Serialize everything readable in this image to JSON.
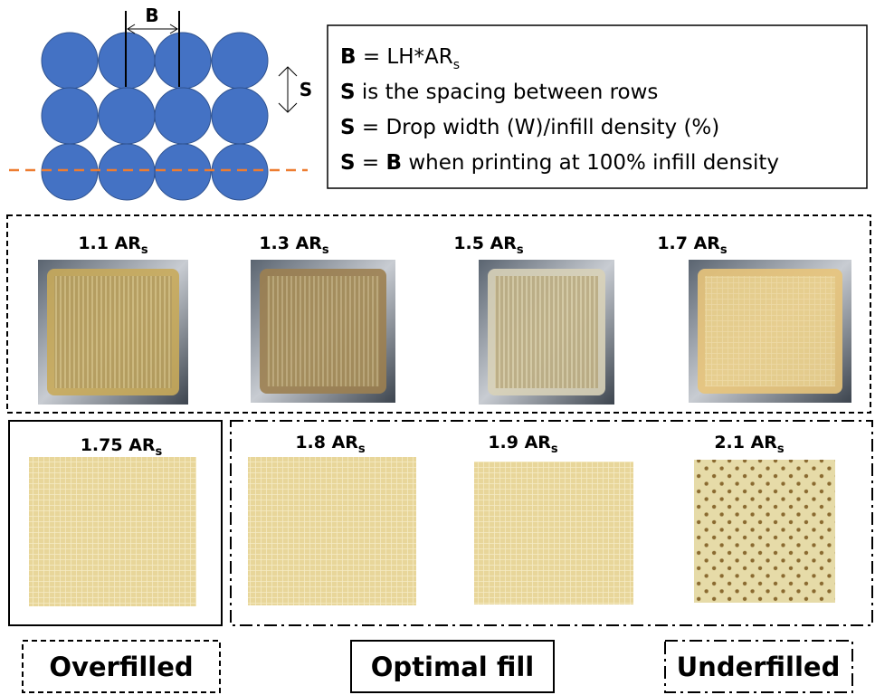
{
  "schematic": {
    "width_label": "B",
    "spacing_label": "S"
  },
  "definitions": [
    {
      "bold": "B",
      "text": " = LH*AR",
      "sub": "s"
    },
    {
      "bold": "S",
      "text": " is the spacing between rows"
    },
    {
      "bold": "S",
      "text": " = Drop width (W)/infill density (%)"
    },
    {
      "bold": "S",
      "text": " = ",
      "bold2": "B",
      "text2": " when printing at 100% infill density"
    }
  ],
  "samples": [
    {
      "label": "1.1 AR",
      "sub": "s"
    },
    {
      "label": "1.3 AR",
      "sub": "s"
    },
    {
      "label": "1.5 AR",
      "sub": "s"
    },
    {
      "label": "1.7 AR",
      "sub": "s"
    },
    {
      "label": "1.75 AR",
      "sub": "s"
    },
    {
      "label": "1.8 AR",
      "sub": "s"
    },
    {
      "label": "1.9 AR",
      "sub": "s"
    },
    {
      "label": "2.1 AR",
      "sub": "s"
    }
  ],
  "categories": [
    "Overfilled",
    "Optimal fill",
    "Underfilled"
  ]
}
